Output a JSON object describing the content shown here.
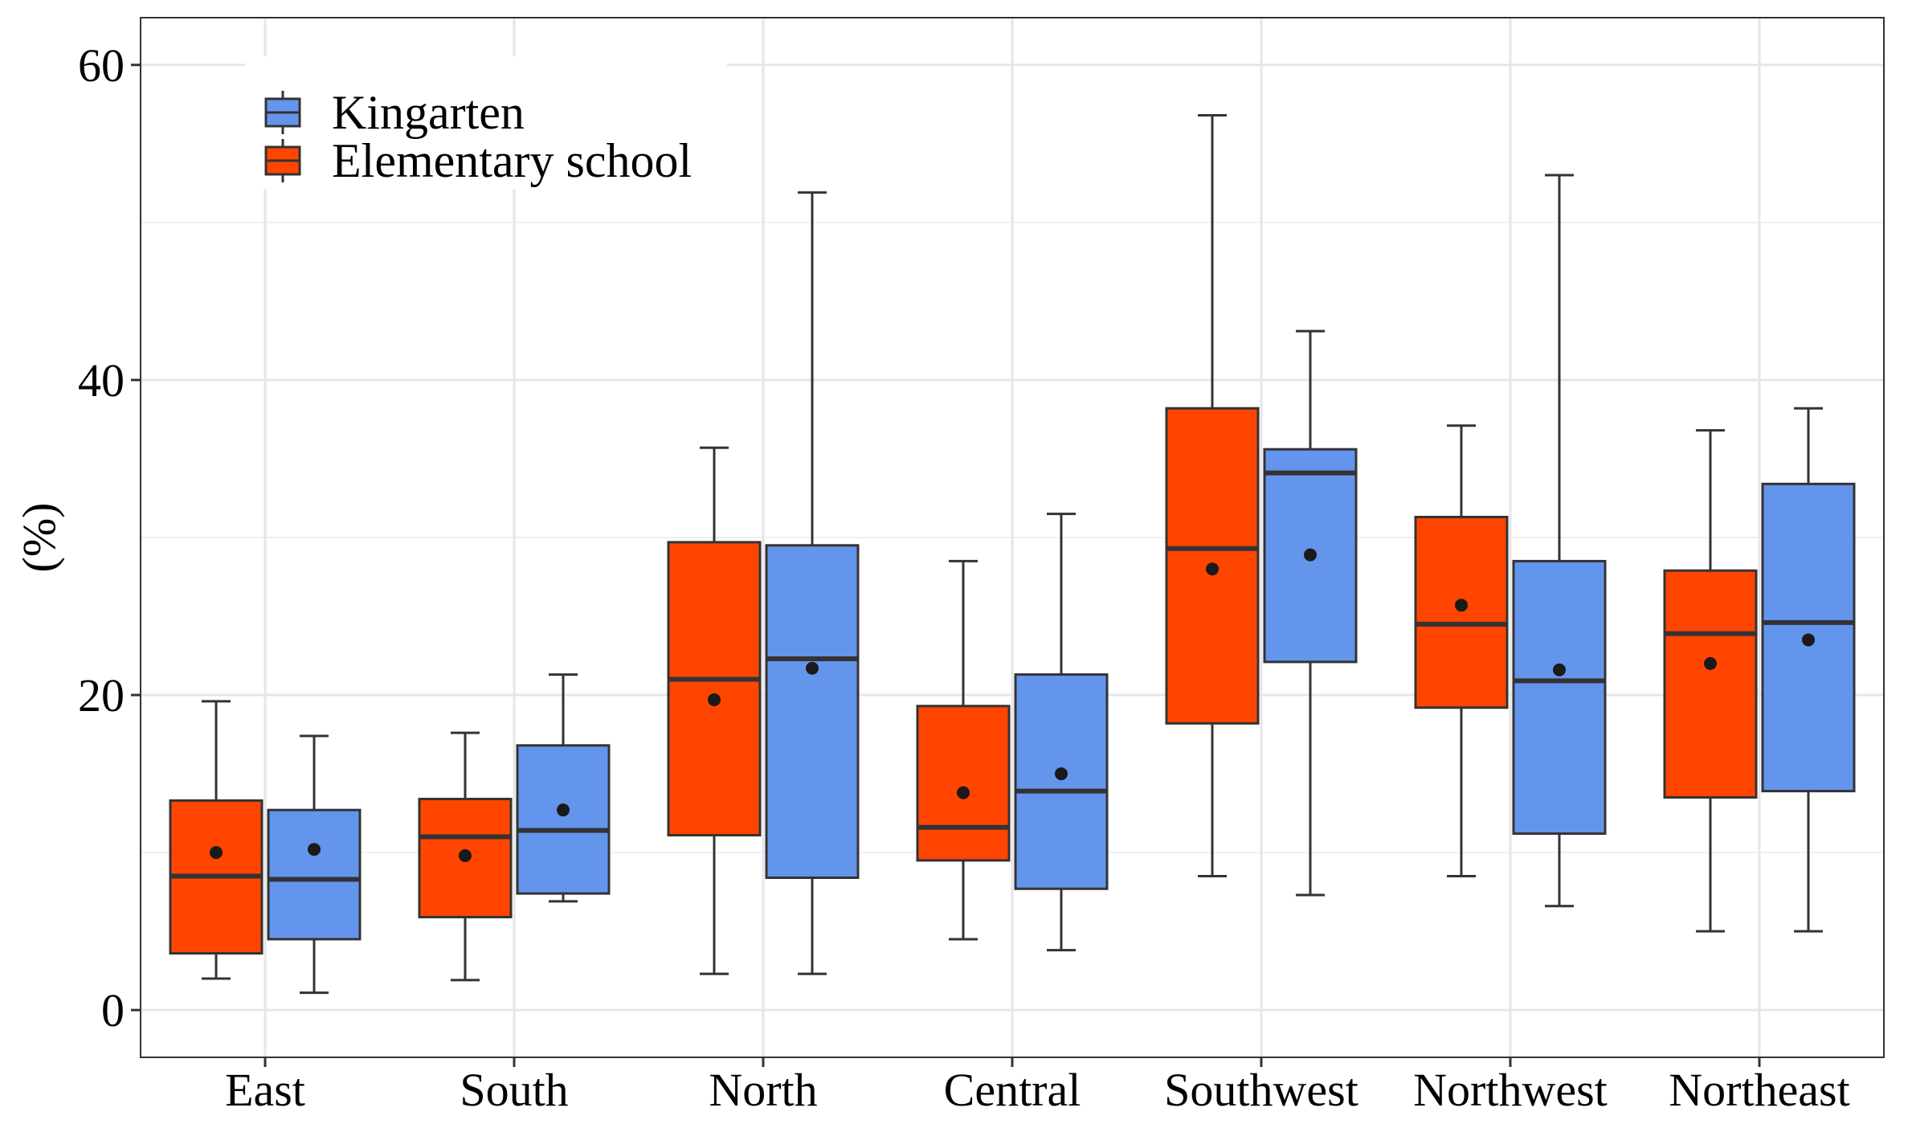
{
  "chart_data": {
    "type": "boxplot",
    "title": "",
    "xlabel": "",
    "ylabel": "(%)",
    "ylim": [
      -3,
      63
    ],
    "yticks": [
      0,
      20,
      40,
      60
    ],
    "grid": true,
    "legend_position": "top-left",
    "categories": [
      "East",
      "South",
      "North",
      "Central",
      "Southwest",
      "Northwest",
      "Northeast"
    ],
    "series": [
      {
        "name": "Elementary school",
        "color": "#FF4500",
        "boxes": [
          {
            "min": 2.0,
            "q1": 3.6,
            "median": 8.5,
            "q3": 13.3,
            "max": 19.6,
            "mean": 10.0
          },
          {
            "min": 1.9,
            "q1": 5.9,
            "median": 11.0,
            "q3": 13.4,
            "max": 17.6,
            "mean": 9.8
          },
          {
            "min": 2.3,
            "q1": 11.1,
            "median": 21.0,
            "q3": 29.7,
            "max": 35.7,
            "mean": 19.7
          },
          {
            "min": 4.5,
            "q1": 9.5,
            "median": 11.6,
            "q3": 19.3,
            "max": 28.5,
            "mean": 13.8
          },
          {
            "min": 8.5,
            "q1": 18.2,
            "median": 29.3,
            "q3": 38.2,
            "max": 56.8,
            "mean": 28.0
          },
          {
            "min": 8.5,
            "q1": 19.2,
            "median": 24.5,
            "q3": 31.3,
            "max": 37.1,
            "mean": 25.7
          },
          {
            "min": 5.0,
            "q1": 13.5,
            "median": 23.9,
            "q3": 27.9,
            "max": 36.8,
            "mean": 22.0
          }
        ]
      },
      {
        "name": "Kingarten",
        "color": "#6495ED",
        "boxes": [
          {
            "min": 1.1,
            "q1": 4.5,
            "median": 8.3,
            "q3": 12.7,
            "max": 17.4,
            "mean": 10.2
          },
          {
            "min": 6.9,
            "q1": 7.4,
            "median": 11.4,
            "q3": 16.8,
            "max": 21.3,
            "mean": 12.7
          },
          {
            "min": 2.3,
            "q1": 8.4,
            "median": 22.3,
            "q3": 29.5,
            "max": 51.9,
            "mean": 21.7
          },
          {
            "min": 3.8,
            "q1": 7.7,
            "median": 13.9,
            "q3": 21.3,
            "max": 31.5,
            "mean": 15.0
          },
          {
            "min": 7.3,
            "q1": 22.1,
            "median": 34.1,
            "q3": 35.6,
            "max": 43.1,
            "mean": 28.9
          },
          {
            "min": 6.6,
            "q1": 11.2,
            "median": 20.9,
            "q3": 28.5,
            "max": 53.0,
            "mean": 21.6
          },
          {
            "min": 5.0,
            "q1": 13.9,
            "median": 24.6,
            "q3": 33.4,
            "max": 38.2,
            "mean": 23.5
          }
        ]
      }
    ],
    "legend": [
      {
        "label": "Kingarten",
        "color": "#6495ED"
      },
      {
        "label": "Elementary school",
        "color": "#FF4500"
      }
    ]
  }
}
